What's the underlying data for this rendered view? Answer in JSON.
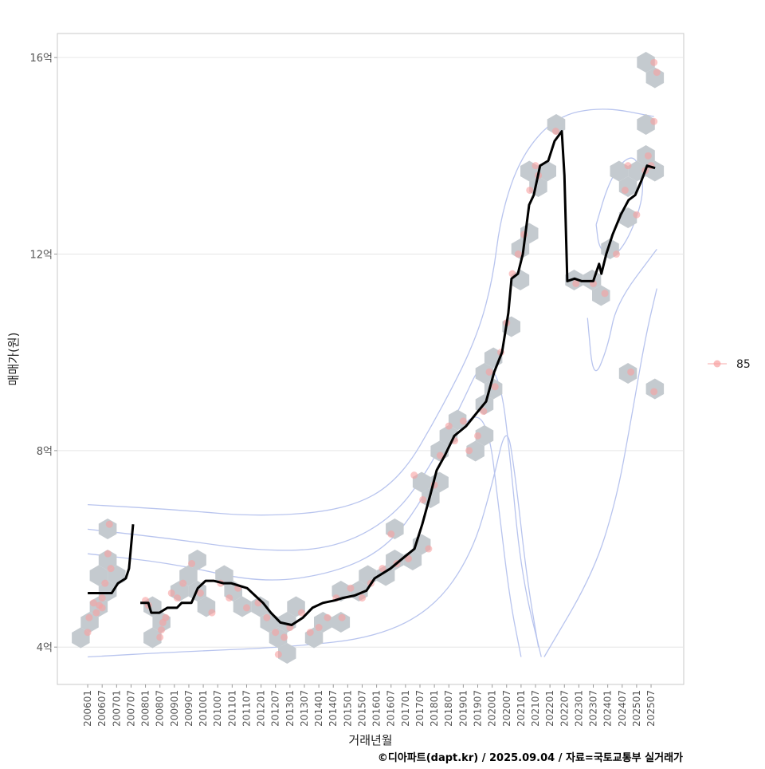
{
  "chart_data": {
    "type": "line",
    "title": "",
    "xlabel": "거래년월",
    "ylabel": "매매가(원)",
    "caption": "©디아파트(dapt.kr) / 2025.09.04 / 자료=국토교통부 실거래가",
    "xlim": [
      2004.95,
      2026.63
    ],
    "ylim": [
      3.24,
      16.49
    ],
    "y_unit": "억",
    "grid": true,
    "legend": {
      "position": "right",
      "entries": [
        {
          "label": "85",
          "color": "#f8a0a0"
        }
      ]
    },
    "yticks": [
      {
        "value": 4,
        "label": "4억"
      },
      {
        "value": 8,
        "label": "8억"
      },
      {
        "value": 12,
        "label": "12억"
      },
      {
        "value": 16,
        "label": "16억"
      }
    ],
    "xticks": [
      "200601",
      "200607",
      "200701",
      "200707",
      "200801",
      "200807",
      "200901",
      "200907",
      "201001",
      "201007",
      "201101",
      "201107",
      "201201",
      "201207",
      "201301",
      "201307",
      "201401",
      "201407",
      "201501",
      "201507",
      "201601",
      "201607",
      "201701",
      "201707",
      "201801",
      "201807",
      "201901",
      "201907",
      "202001",
      "202007",
      "202101",
      "202107",
      "202201",
      "202207",
      "202301",
      "202307",
      "202401",
      "202407",
      "202501",
      "202507"
    ],
    "series": [
      {
        "name": "median",
        "segments": [
          [
            [
              2006.0,
              5.1
            ],
            [
              2006.83,
              5.1
            ],
            [
              2007.05,
              5.3
            ],
            [
              2007.32,
              5.4
            ],
            [
              2007.43,
              5.6
            ],
            [
              2007.57,
              6.5
            ]
          ],
          [
            [
              2007.82,
              4.9
            ],
            [
              2008.1,
              4.9
            ],
            [
              2008.2,
              4.7
            ],
            [
              2008.48,
              4.7
            ],
            [
              2008.76,
              4.8
            ],
            [
              2009.09,
              4.8
            ],
            [
              2009.25,
              4.9
            ],
            [
              2009.59,
              4.9
            ],
            [
              2009.81,
              5.2
            ],
            [
              2010.08,
              5.35
            ],
            [
              2010.36,
              5.35
            ],
            [
              2010.69,
              5.3
            ],
            [
              2010.96,
              5.3
            ],
            [
              2011.52,
              5.2
            ],
            [
              2011.79,
              5.05
            ],
            [
              2012.07,
              4.9
            ],
            [
              2012.34,
              4.7
            ],
            [
              2012.67,
              4.5
            ],
            [
              2013.06,
              4.45
            ],
            [
              2013.45,
              4.6
            ],
            [
              2013.78,
              4.8
            ],
            [
              2014.14,
              4.9
            ],
            [
              2014.55,
              4.95
            ],
            [
              2014.83,
              5.0
            ],
            [
              2015.24,
              5.05
            ],
            [
              2015.65,
              5.15
            ],
            [
              2015.93,
              5.4
            ],
            [
              2016.48,
              5.6
            ],
            [
              2016.89,
              5.8
            ],
            [
              2017.31,
              6.0
            ],
            [
              2017.58,
              6.5
            ],
            [
              2017.86,
              7.1
            ],
            [
              2018.08,
              7.6
            ],
            [
              2018.36,
              7.9
            ],
            [
              2018.69,
              8.3
            ],
            [
              2019.1,
              8.5
            ],
            [
              2019.51,
              8.8
            ],
            [
              2019.79,
              9.0
            ],
            [
              2020.07,
              9.6
            ],
            [
              2020.34,
              10.0
            ],
            [
              2020.56,
              10.8
            ],
            [
              2020.67,
              11.5
            ],
            [
              2020.89,
              11.6
            ],
            [
              2021.06,
              12.0
            ],
            [
              2021.28,
              13.0
            ],
            [
              2021.44,
              13.2
            ],
            [
              2021.66,
              13.8
            ],
            [
              2021.94,
              13.9
            ],
            [
              2022.16,
              14.3
            ],
            [
              2022.41,
              14.5
            ],
            [
              2022.5,
              13.6
            ],
            [
              2022.6,
              11.45
            ],
            [
              2022.85,
              11.5
            ],
            [
              2023.1,
              11.45
            ],
            [
              2023.5,
              11.45
            ],
            [
              2023.7,
              11.8
            ],
            [
              2023.78,
              11.6
            ],
            [
              2023.95,
              12.0
            ],
            [
              2024.17,
              12.4
            ],
            [
              2024.45,
              12.8
            ],
            [
              2024.72,
              13.1
            ],
            [
              2024.95,
              13.2
            ],
            [
              2025.17,
              13.5
            ],
            [
              2025.36,
              13.8
            ],
            [
              2025.64,
              13.75
            ]
          ]
        ]
      }
    ],
    "points": [
      [
        2006.0,
        4.3
      ],
      [
        2006.05,
        4.6
      ],
      [
        2006.2,
        4.9
      ],
      [
        2006.3,
        4.7
      ],
      [
        2006.4,
        4.85
      ],
      [
        2006.5,
        5.0
      ],
      [
        2006.6,
        5.3
      ],
      [
        2006.7,
        5.9
      ],
      [
        2006.75,
        6.5
      ],
      [
        2006.8,
        5.6
      ],
      [
        2006.5,
        4.8
      ],
      [
        2008.0,
        4.95
      ],
      [
        2008.1,
        4.85
      ],
      [
        2008.5,
        4.2
      ],
      [
        2008.55,
        4.35
      ],
      [
        2008.6,
        4.5
      ],
      [
        2008.7,
        4.6
      ],
      [
        2008.9,
        5.1
      ],
      [
        2009.1,
        5.0
      ],
      [
        2009.3,
        5.3
      ],
      [
        2009.6,
        5.7
      ],
      [
        2009.9,
        5.1
      ],
      [
        2010.3,
        4.7
      ],
      [
        2010.6,
        5.3
      ],
      [
        2010.9,
        5.0
      ],
      [
        2011.2,
        5.2
      ],
      [
        2011.5,
        4.8
      ],
      [
        2011.9,
        4.9
      ],
      [
        2012.2,
        4.6
      ],
      [
        2012.5,
        4.3
      ],
      [
        2012.6,
        3.85
      ],
      [
        2012.8,
        4.2
      ],
      [
        2013.0,
        4.4
      ],
      [
        2013.4,
        4.7
      ],
      [
        2013.7,
        4.3
      ],
      [
        2014.0,
        4.4
      ],
      [
        2014.3,
        4.6
      ],
      [
        2014.6,
        5.0
      ],
      [
        2014.8,
        4.6
      ],
      [
        2015.1,
        5.2
      ],
      [
        2015.5,
        5.0
      ],
      [
        2015.8,
        5.3
      ],
      [
        2016.2,
        5.6
      ],
      [
        2016.5,
        6.3
      ],
      [
        2016.7,
        5.7
      ],
      [
        2017.1,
        5.8
      ],
      [
        2017.3,
        7.5
      ],
      [
        2017.6,
        7.0
      ],
      [
        2017.8,
        6.0
      ],
      [
        2018.0,
        7.3
      ],
      [
        2018.2,
        7.9
      ],
      [
        2018.5,
        8.5
      ],
      [
        2018.7,
        8.2
      ],
      [
        2019.0,
        8.6
      ],
      [
        2019.2,
        8.0
      ],
      [
        2019.5,
        8.3
      ],
      [
        2019.7,
        8.8
      ],
      [
        2019.9,
        9.6
      ],
      [
        2020.1,
        9.3
      ],
      [
        2020.3,
        10.0
      ],
      [
        2020.5,
        10.6
      ],
      [
        2020.7,
        11.6
      ],
      [
        2020.9,
        12.0
      ],
      [
        2021.1,
        12.4
      ],
      [
        2021.3,
        13.3
      ],
      [
        2021.5,
        13.8
      ],
      [
        2021.6,
        13.6
      ],
      [
        2022.2,
        14.5
      ],
      [
        2022.9,
        11.4
      ],
      [
        2023.5,
        11.4
      ],
      [
        2023.9,
        11.2
      ],
      [
        2024.3,
        12.0
      ],
      [
        2024.6,
        13.3
      ],
      [
        2024.7,
        13.8
      ],
      [
        2024.8,
        9.6
      ],
      [
        2025.0,
        12.8
      ],
      [
        2025.3,
        13.7
      ],
      [
        2025.4,
        14.0
      ],
      [
        2025.5,
        13.8
      ],
      [
        2025.6,
        14.7
      ],
      [
        2025.6,
        15.9
      ],
      [
        2025.7,
        15.7
      ],
      [
        2025.6,
        9.2
      ]
    ],
    "density_contours": [
      [
        [
          2006.0,
          6.9
        ],
        [
          2009,
          6.8
        ],
        [
          2012,
          6.65
        ],
        [
          2015,
          6.8
        ],
        [
          2016.8,
          7.4
        ],
        [
          2018.2,
          8.8
        ],
        [
          2019.4,
          10.2
        ],
        [
          2020.0,
          11.4
        ],
        [
          2020.3,
          12.8
        ],
        [
          2021.0,
          14.0
        ],
        [
          2022.2,
          14.8
        ],
        [
          2023.8,
          15.0
        ],
        [
          2025.6,
          14.8
        ]
      ],
      [
        [
          2006.0,
          6.4
        ],
        [
          2009,
          6.2
        ],
        [
          2012,
          5.95
        ],
        [
          2014.5,
          6.0
        ],
        [
          2016.5,
          6.6
        ],
        [
          2017.8,
          7.6
        ],
        [
          2018.9,
          8.9
        ],
        [
          2019.7,
          9.9
        ],
        [
          2020.3,
          9.4
        ],
        [
          2020.6,
          8.0
        ],
        [
          2021.0,
          5.5
        ],
        [
          2021.7,
          3.8
        ]
      ],
      [
        [
          2006.0,
          5.9
        ],
        [
          2009,
          5.7
        ],
        [
          2012,
          5.3
        ],
        [
          2014.5,
          5.5
        ],
        [
          2016.3,
          6.0
        ],
        [
          2017.5,
          6.9
        ],
        [
          2018.6,
          8.2
        ],
        [
          2019.4,
          8.8
        ],
        [
          2019.9,
          8.4
        ],
        [
          2020.2,
          7.0
        ],
        [
          2020.6,
          5.0
        ],
        [
          2021.0,
          3.8
        ]
      ],
      [
        [
          2006.0,
          3.8
        ],
        [
          2009,
          3.9
        ],
        [
          2013,
          4.0
        ],
        [
          2016,
          4.2
        ],
        [
          2018,
          4.8
        ],
        [
          2019.3,
          5.9
        ],
        [
          2020.0,
          7.3
        ],
        [
          2020.5,
          8.6
        ],
        [
          2020.8,
          7.5
        ],
        [
          2021.2,
          5.4
        ],
        [
          2021.6,
          4.0
        ]
      ],
      [
        [
          2023.6,
          12.6
        ],
        [
          2024.0,
          13.4
        ],
        [
          2024.5,
          13.9
        ],
        [
          2025.0,
          14.0
        ],
        [
          2025.3,
          13.3
        ],
        [
          2024.8,
          12.4
        ],
        [
          2024.2,
          11.9
        ],
        [
          2023.7,
          12.1
        ],
        [
          2023.6,
          12.6
        ]
      ],
      [
        [
          2021.8,
          3.8
        ],
        [
          2023.5,
          5.5
        ],
        [
          2024.3,
          7.0
        ],
        [
          2024.8,
          8.6
        ],
        [
          2025.3,
          10.3
        ],
        [
          2025.7,
          11.3
        ]
      ],
      [
        [
          2023.3,
          10.7
        ],
        [
          2023.5,
          9.4
        ],
        [
          2024.0,
          10.1
        ],
        [
          2024.3,
          11.0
        ],
        [
          2025.7,
          12.1
        ]
      ]
    ]
  }
}
